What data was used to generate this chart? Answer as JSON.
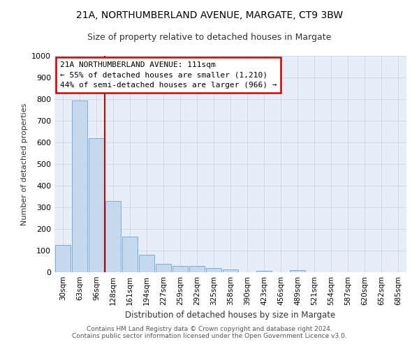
{
  "title1": "21A, NORTHUMBERLAND AVENUE, MARGATE, CT9 3BW",
  "title2": "Size of property relative to detached houses in Margate",
  "xlabel": "Distribution of detached houses by size in Margate",
  "ylabel": "Number of detached properties",
  "categories": [
    "30sqm",
    "63sqm",
    "96sqm",
    "128sqm",
    "161sqm",
    "194sqm",
    "227sqm",
    "259sqm",
    "292sqm",
    "325sqm",
    "358sqm",
    "390sqm",
    "423sqm",
    "456sqm",
    "489sqm",
    "521sqm",
    "554sqm",
    "587sqm",
    "620sqm",
    "652sqm",
    "685sqm"
  ],
  "values": [
    125,
    795,
    620,
    330,
    163,
    80,
    40,
    30,
    28,
    18,
    13,
    0,
    7,
    0,
    10,
    0,
    0,
    0,
    0,
    0,
    0
  ],
  "bar_color": "#c5d8ed",
  "bar_edge_color": "#7aadd4",
  "red_line_x": 2.5,
  "annotation_title": "21A NORTHUMBERLAND AVENUE: 111sqm",
  "annotation_line1": "← 55% of detached houses are smaller (1,210)",
  "annotation_line2": "44% of semi-detached houses are larger (966) →",
  "annotation_box_color": "#ffffff",
  "annotation_box_edge": "#cc0000",
  "red_line_color": "#cc0000",
  "grid_color": "#c8d4e8",
  "bg_color": "#e8eef8",
  "ylim": [
    0,
    1000
  ],
  "yticks": [
    0,
    100,
    200,
    300,
    400,
    500,
    600,
    700,
    800,
    900,
    1000
  ],
  "footer1": "Contains HM Land Registry data © Crown copyright and database right 2024.",
  "footer2": "Contains public sector information licensed under the Open Government Licence v3.0."
}
